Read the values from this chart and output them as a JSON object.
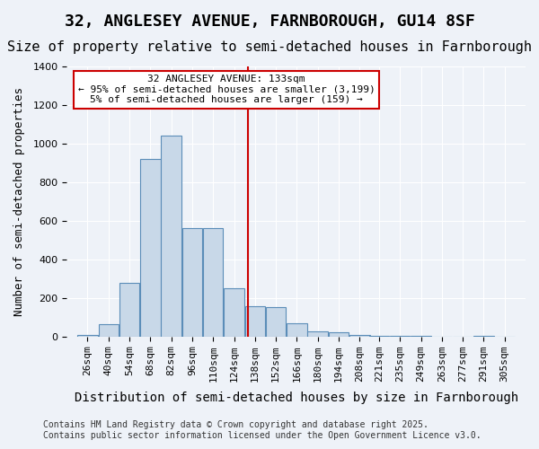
{
  "title1": "32, ANGLESEY AVENUE, FARNBOROUGH, GU14 8SF",
  "title2": "Size of property relative to semi-detached houses in Farnborough",
  "xlabel": "Distribution of semi-detached houses by size in Farnborough",
  "ylabel": "Number of semi-detached properties",
  "annotation_line1": "32 ANGLESEY AVENUE: 133sqm",
  "annotation_line2": "← 95% of semi-detached houses are smaller (3,199)",
  "annotation_line3": "5% of semi-detached houses are larger (159) →",
  "footer1": "Contains HM Land Registry data © Crown copyright and database right 2025.",
  "footer2": "Contains public sector information licensed under the Open Government Licence v3.0.",
  "bar_color": "#c8d8e8",
  "bar_edge_color": "#5b8db8",
  "vline_color": "#cc0000",
  "vline_x": 133,
  "annotation_box_color": "#cc0000",
  "background_color": "#eef2f8",
  "categories": [
    26,
    40,
    54,
    68,
    82,
    96,
    110,
    124,
    138,
    152,
    166,
    180,
    194,
    208,
    221,
    235,
    249,
    263,
    277,
    291,
    305
  ],
  "bin_width": 14,
  "bar_heights": [
    10,
    65,
    280,
    920,
    1040,
    560,
    560,
    250,
    155,
    150,
    70,
    25,
    20,
    10,
    5,
    5,
    5,
    0,
    0,
    5,
    0
  ],
  "ylim": [
    0,
    1400
  ],
  "yticks": [
    0,
    200,
    400,
    600,
    800,
    1000,
    1200,
    1400
  ],
  "title1_fontsize": 13,
  "title2_fontsize": 11,
  "xlabel_fontsize": 10,
  "ylabel_fontsize": 9,
  "tick_fontsize": 8,
  "annotation_fontsize": 8,
  "footer_fontsize": 7
}
